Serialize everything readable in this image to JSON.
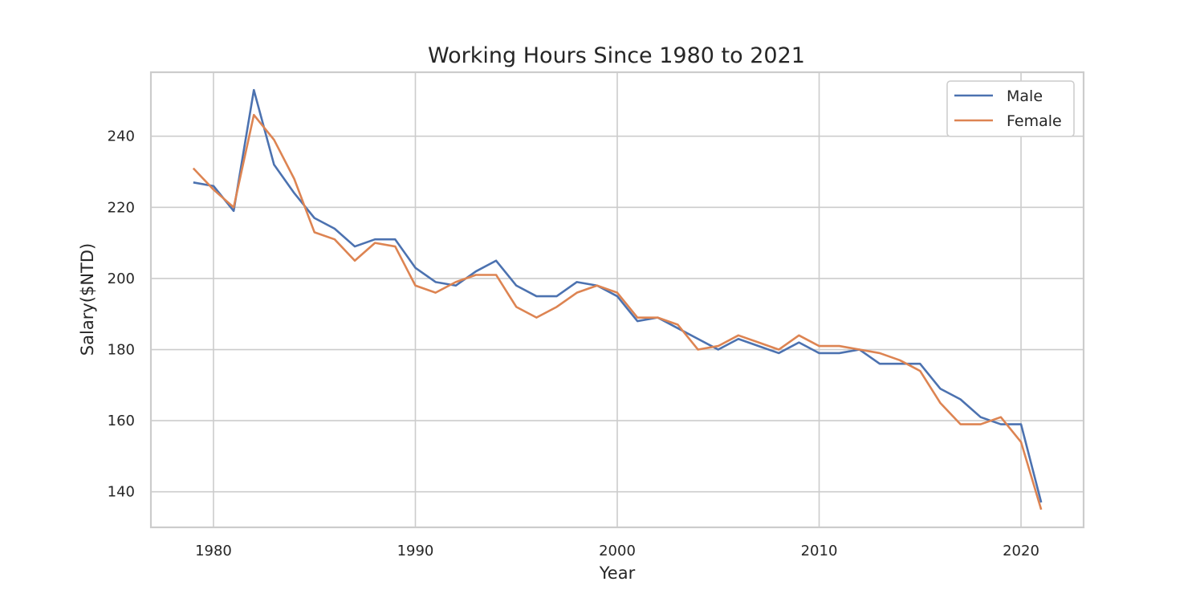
{
  "chart_data": {
    "type": "line",
    "title": "Working Hours Since 1980 to 2021",
    "xlabel": "Year",
    "ylabel": "Salary($NTD)",
    "xlim": [
      1976.9,
      2023.1
    ],
    "ylim": [
      130,
      258
    ],
    "xticks": [
      1980,
      1990,
      2000,
      2010,
      2020
    ],
    "yticks": [
      140,
      160,
      180,
      200,
      220,
      240
    ],
    "grid": true,
    "legend_position": "top-right",
    "x": [
      1979,
      1980,
      1981,
      1982,
      1983,
      1984,
      1985,
      1986,
      1987,
      1988,
      1989,
      1990,
      1991,
      1992,
      1993,
      1994,
      1995,
      1996,
      1997,
      1998,
      1999,
      2000,
      2001,
      2002,
      2003,
      2004,
      2005,
      2006,
      2007,
      2008,
      2009,
      2010,
      2011,
      2012,
      2013,
      2014,
      2015,
      2016,
      2017,
      2018,
      2019,
      2020,
      2021
    ],
    "series": [
      {
        "name": "Male",
        "color": "#4c72b0",
        "values": [
          227,
          226,
          219,
          253,
          232,
          224,
          217,
          214,
          209,
          211,
          211,
          203,
          199,
          198,
          202,
          205,
          198,
          195,
          195,
          199,
          198,
          195,
          188,
          189,
          186,
          183,
          180,
          183,
          181,
          179,
          182,
          179,
          179,
          180,
          176,
          176,
          176,
          169,
          166,
          161,
          159,
          159,
          137
        ]
      },
      {
        "name": "Female",
        "color": "#dd8452",
        "values": [
          231,
          225,
          220,
          246,
          239,
          228,
          213,
          211,
          205,
          210,
          209,
          198,
          196,
          199,
          201,
          201,
          192,
          189,
          192,
          196,
          198,
          196,
          189,
          189,
          187,
          180,
          181,
          184,
          182,
          180,
          184,
          181,
          181,
          180,
          179,
          177,
          174,
          165,
          159,
          159,
          161,
          154,
          135
        ]
      }
    ]
  }
}
